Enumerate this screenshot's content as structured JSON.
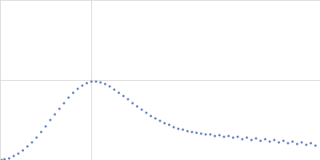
{
  "chart_data": {
    "type": "scatter",
    "color": "#3a62b0",
    "marker": "circle",
    "grid": true,
    "tick_labels": false,
    "xlim": [
      0,
      3.5
    ],
    "xticks": [
      0,
      1
    ],
    "ylim": [
      0,
      2
    ],
    "yticks": [
      0,
      1,
      2
    ],
    "x": [
      0.02,
      0.05,
      0.1,
      0.15,
      0.2,
      0.25,
      0.3,
      0.35,
      0.4,
      0.45,
      0.5,
      0.55,
      0.6,
      0.65,
      0.7,
      0.75,
      0.8,
      0.85,
      0.9,
      0.95,
      1.0,
      1.05,
      1.1,
      1.15,
      1.2,
      1.25,
      1.3,
      1.35,
      1.4,
      1.45,
      1.5,
      1.55,
      1.6,
      1.65,
      1.7,
      1.75,
      1.8,
      1.85,
      1.9,
      1.95,
      2.0,
      2.05,
      2.1,
      2.15,
      2.2,
      2.25,
      2.3,
      2.35,
      2.4,
      2.45,
      2.5,
      2.55,
      2.6,
      2.65,
      2.7,
      2.75,
      2.8,
      2.85,
      2.9,
      2.95,
      3.0,
      3.05,
      3.1,
      3.15,
      3.2,
      3.25,
      3.3,
      3.35,
      3.4,
      3.45
    ],
    "values": [
      0.0,
      0.01,
      0.02,
      0.05,
      0.08,
      0.12,
      0.17,
      0.22,
      0.28,
      0.35,
      0.42,
      0.5,
      0.57,
      0.64,
      0.71,
      0.78,
      0.84,
      0.89,
      0.93,
      0.96,
      0.98,
      0.98,
      0.97,
      0.95,
      0.92,
      0.88,
      0.84,
      0.8,
      0.76,
      0.71,
      0.67,
      0.63,
      0.59,
      0.55,
      0.52,
      0.49,
      0.46,
      0.44,
      0.41,
      0.39,
      0.38,
      0.36,
      0.35,
      0.34,
      0.33,
      0.32,
      0.32,
      0.3,
      0.31,
      0.29,
      0.3,
      0.28,
      0.29,
      0.26,
      0.28,
      0.25,
      0.27,
      0.24,
      0.26,
      0.23,
      0.25,
      0.22,
      0.24,
      0.21,
      0.23,
      0.2,
      0.22,
      0.19,
      0.21,
      0.18
    ]
  }
}
